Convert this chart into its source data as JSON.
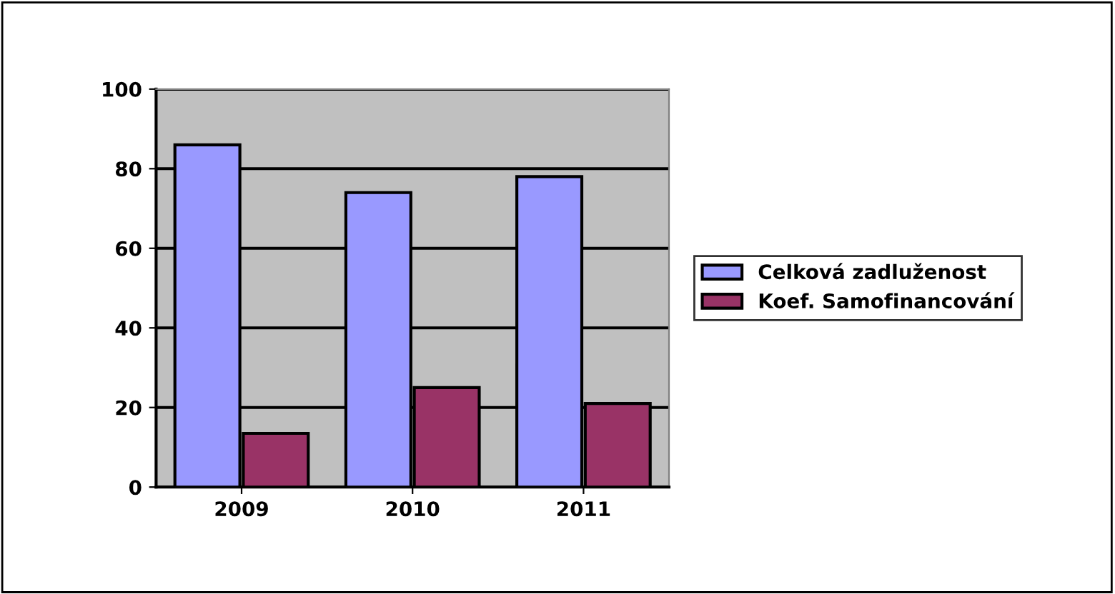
{
  "chart_data": {
    "type": "bar",
    "categories": [
      "2009",
      "2010",
      "2011"
    ],
    "series": [
      {
        "name": "Celková zadluženost",
        "color": "#9999ff",
        "values": [
          86,
          74,
          78
        ]
      },
      {
        "name": "Koef. Samofinancování",
        "color": "#993366",
        "values": [
          13.5,
          25,
          21
        ]
      }
    ],
    "ylim": [
      0,
      100
    ],
    "yticks": [
      0,
      20,
      40,
      60,
      80,
      100
    ],
    "grid": "y",
    "legend": "right"
  }
}
